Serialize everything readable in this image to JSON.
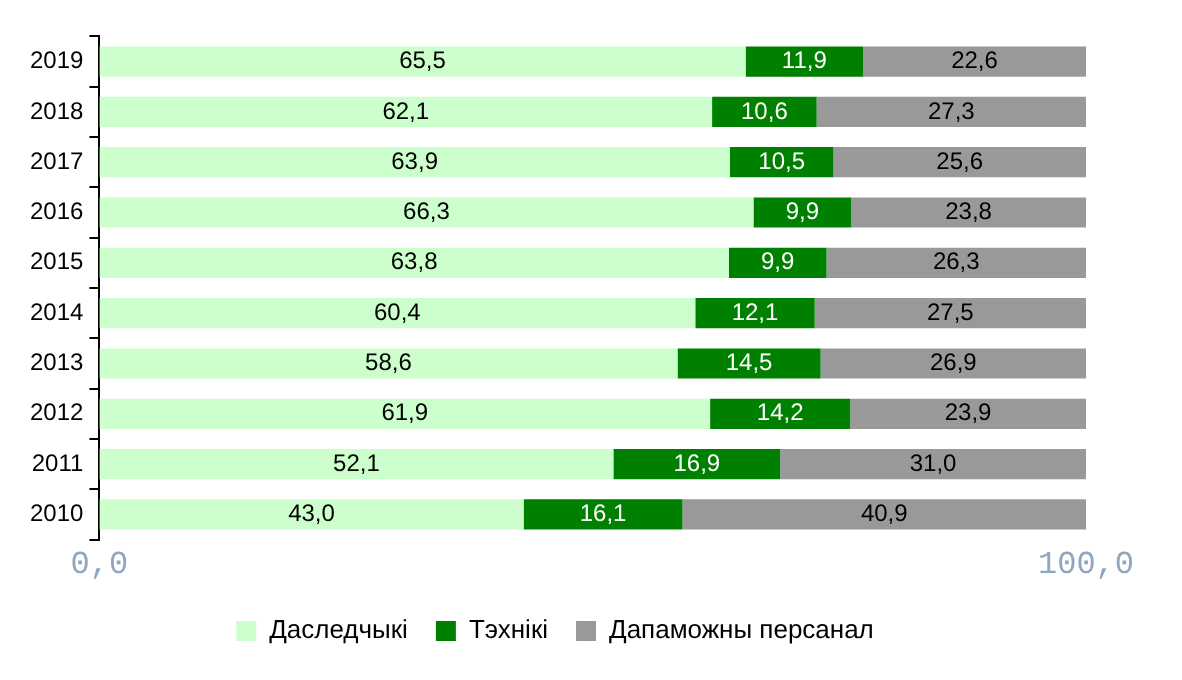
{
  "chart_data": {
    "type": "bar",
    "orientation": "horizontal",
    "stacked": true,
    "categories": [
      "2019",
      "2018",
      "2017",
      "2016",
      "2015",
      "2014",
      "2013",
      "2012",
      "2011",
      "2010"
    ],
    "series": [
      {
        "name": "Даследчыкі",
        "color": "#ccffcc",
        "values": [
          65.5,
          62.1,
          63.9,
          66.3,
          63.8,
          60.4,
          58.6,
          61.9,
          52.1,
          43.0
        ],
        "value_labels": [
          "65,5",
          "62,1",
          "63,9",
          "66,3",
          "63,8",
          "60,4",
          "58,6",
          "61,9",
          "52,1",
          "43,0"
        ]
      },
      {
        "name": "Тэхнікі",
        "color": "#008000",
        "values": [
          11.9,
          10.6,
          10.5,
          9.9,
          9.9,
          12.1,
          14.5,
          14.2,
          16.9,
          16.1
        ],
        "value_labels": [
          "11,9",
          "10,6",
          "10,5",
          "9,9",
          "9,9",
          "12,1",
          "14,5",
          "14,2",
          "16,9",
          "16,1"
        ]
      },
      {
        "name": "Дапаможны персанал",
        "color": "#999999",
        "values": [
          22.6,
          27.3,
          25.6,
          23.8,
          26.3,
          27.5,
          26.9,
          23.9,
          31.0,
          40.9
        ],
        "value_labels": [
          "22,6",
          "27,3",
          "25,6",
          "23,8",
          "26,3",
          "27,5",
          "26,9",
          "23,9",
          "31,0",
          "40,9"
        ]
      }
    ],
    "xlim": [
      0,
      100
    ],
    "xticks": [
      {
        "value": 0,
        "label": "0,0"
      },
      {
        "value": 100,
        "label": "100,0"
      }
    ],
    "grid": false,
    "legend": "bottom"
  }
}
